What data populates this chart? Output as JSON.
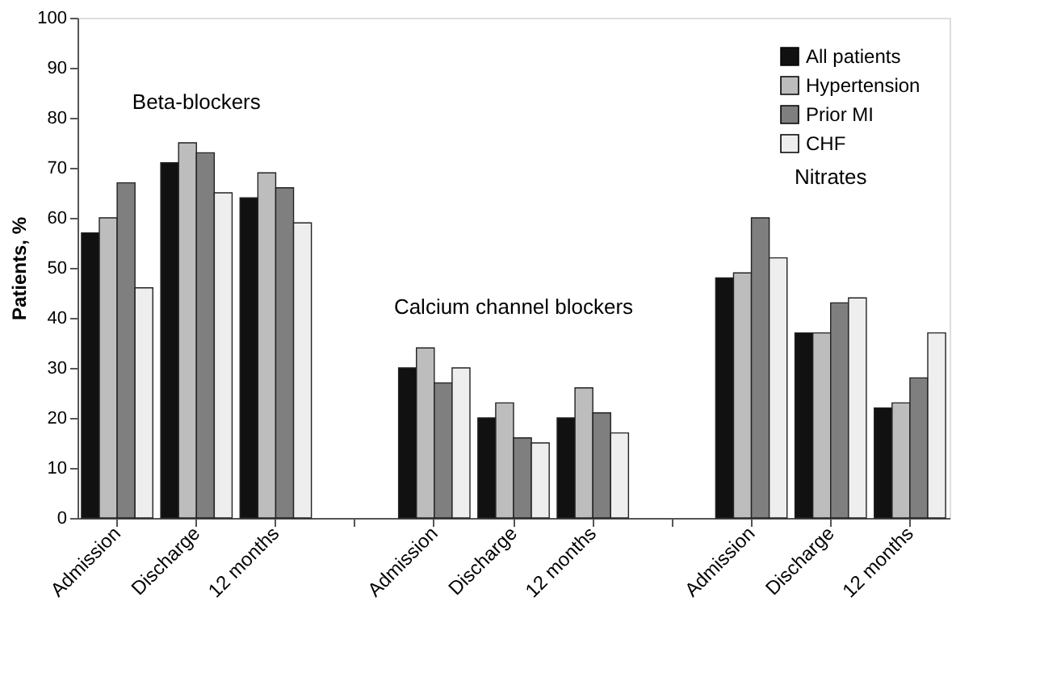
{
  "chart_data": {
    "type": "bar",
    "ylabel": "Patients, %",
    "categories": [
      "Admission",
      "Discharge",
      "12 months",
      null,
      "Admission",
      "Discharge",
      "12 months",
      null,
      "Admission",
      "Discharge",
      "12 months"
    ],
    "series": [
      {
        "name": "All patients",
        "color": "#111111",
        "values": [
          57,
          71,
          64,
          null,
          30,
          20,
          20,
          null,
          48,
          37,
          22
        ]
      },
      {
        "name": "Hypertension",
        "color": "#bdbdbd",
        "values": [
          60,
          75,
          69,
          null,
          34,
          23,
          26,
          null,
          49,
          37,
          23
        ]
      },
      {
        "name": "Prior MI",
        "color": "#7f7f7f",
        "values": [
          67,
          73,
          66,
          null,
          27,
          16,
          21,
          null,
          60,
          43,
          28
        ]
      },
      {
        "name": "CHF",
        "color": "#eeeeee",
        "values": [
          46,
          65,
          59,
          null,
          30,
          15,
          17,
          null,
          52,
          44,
          37
        ]
      }
    ],
    "ylim": [
      0,
      100
    ],
    "yticks": [
      0,
      10,
      20,
      30,
      40,
      50,
      60,
      70,
      80,
      90,
      100
    ],
    "grid": false,
    "legend": "top right",
    "annotations": [
      "Beta-blockers",
      "Calcium channel blockers",
      "Nitrates"
    ]
  }
}
